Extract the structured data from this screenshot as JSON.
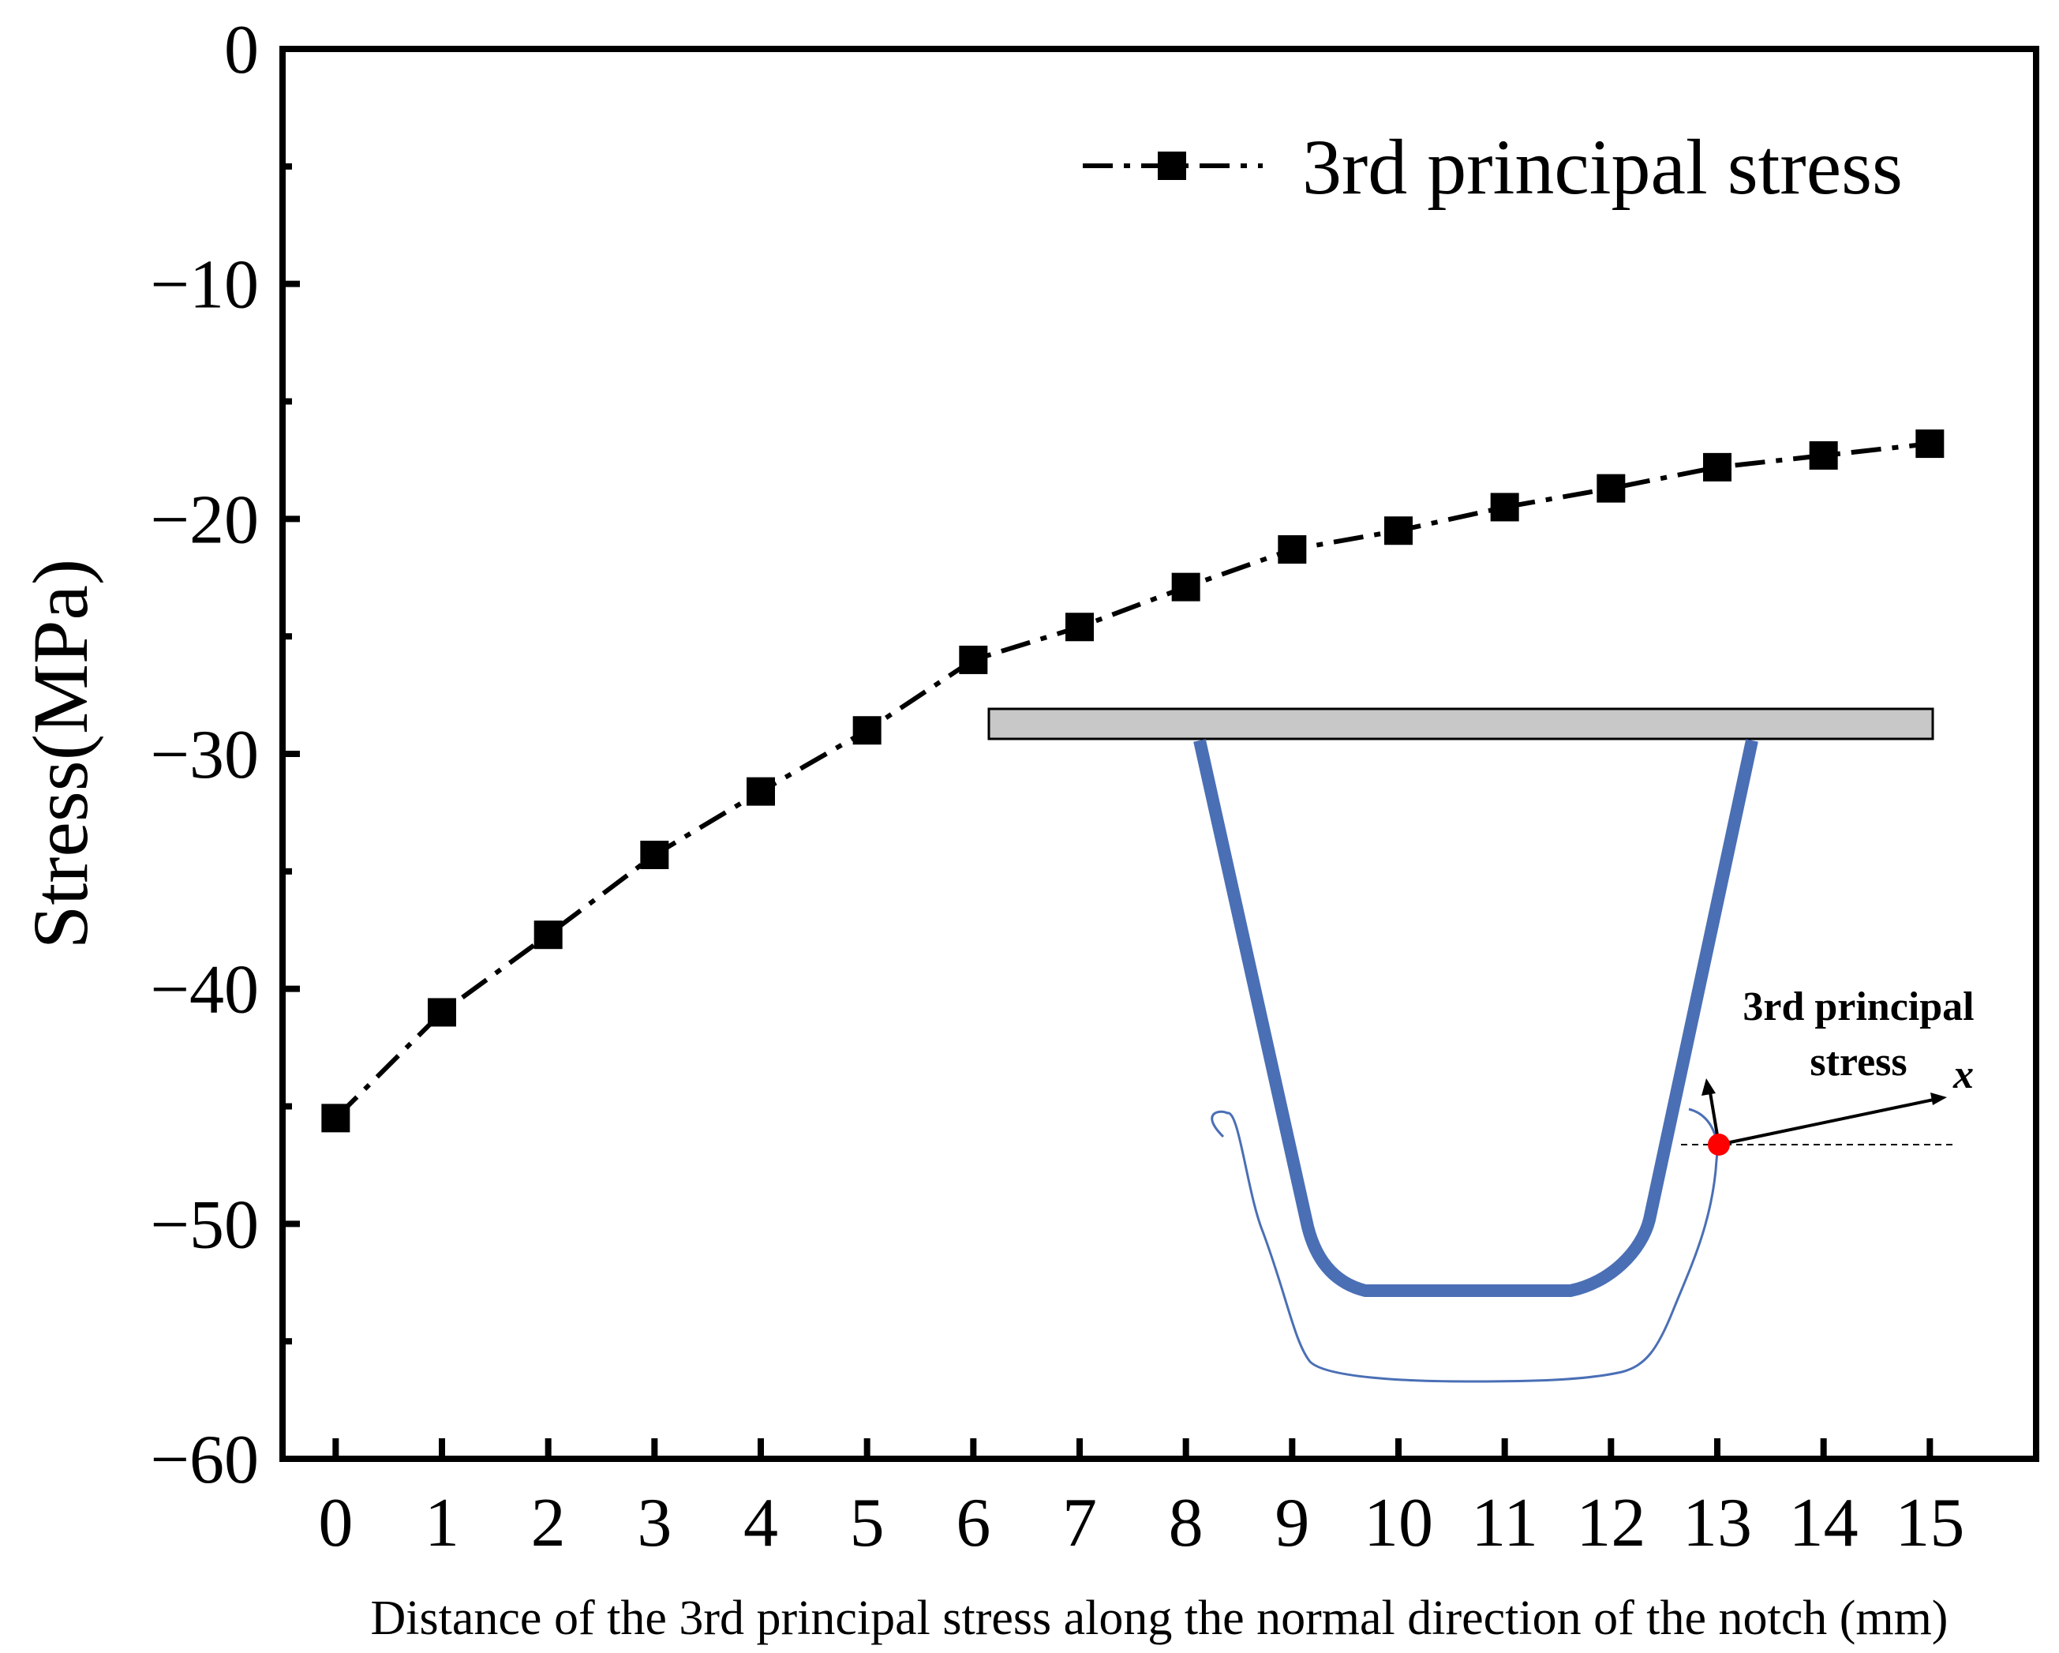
{
  "chart_data": {
    "type": "line",
    "title": "",
    "xlabel": "Distance of the 3rd principal stress along the normal direction of the notch (mm)",
    "ylabel": "Stress(MPa)",
    "xlim": [
      -0.5,
      16
    ],
    "ylim": [
      -60,
      0
    ],
    "xticks": [
      0,
      1,
      2,
      3,
      4,
      5,
      6,
      7,
      8,
      9,
      10,
      11,
      12,
      13,
      14,
      15
    ],
    "yticks": [
      0,
      -10,
      -20,
      -30,
      -40,
      -50,
      -60
    ],
    "ytick_labels": [
      "0",
      "−10",
      "−20",
      "−30",
      "−40",
      "−50",
      "−60"
    ],
    "grid": false,
    "legend_position": "top-right",
    "series": [
      {
        "name": "3rd principal stress",
        "marker": "square",
        "line_style": "dash-dot",
        "color": "#000000",
        "x": [
          0,
          1,
          2,
          3,
          4,
          5,
          6,
          7,
          8,
          9,
          10,
          11,
          12,
          13,
          14,
          15
        ],
        "values": [
          -45.5,
          -41.0,
          -37.7,
          -34.3,
          -31.6,
          -29.0,
          -26.0,
          -24.6,
          -22.9,
          -21.3,
          -20.5,
          -19.5,
          -18.7,
          -17.8,
          -17.3,
          -16.8
        ]
      }
    ]
  },
  "inset": {
    "annotation_line1": "3rd principal",
    "annotation_line2": "stress",
    "axis_label": "x",
    "plate_color": "#c8c8c8",
    "notch_color": "#4a6fb5",
    "point_color": "#ff0000"
  }
}
